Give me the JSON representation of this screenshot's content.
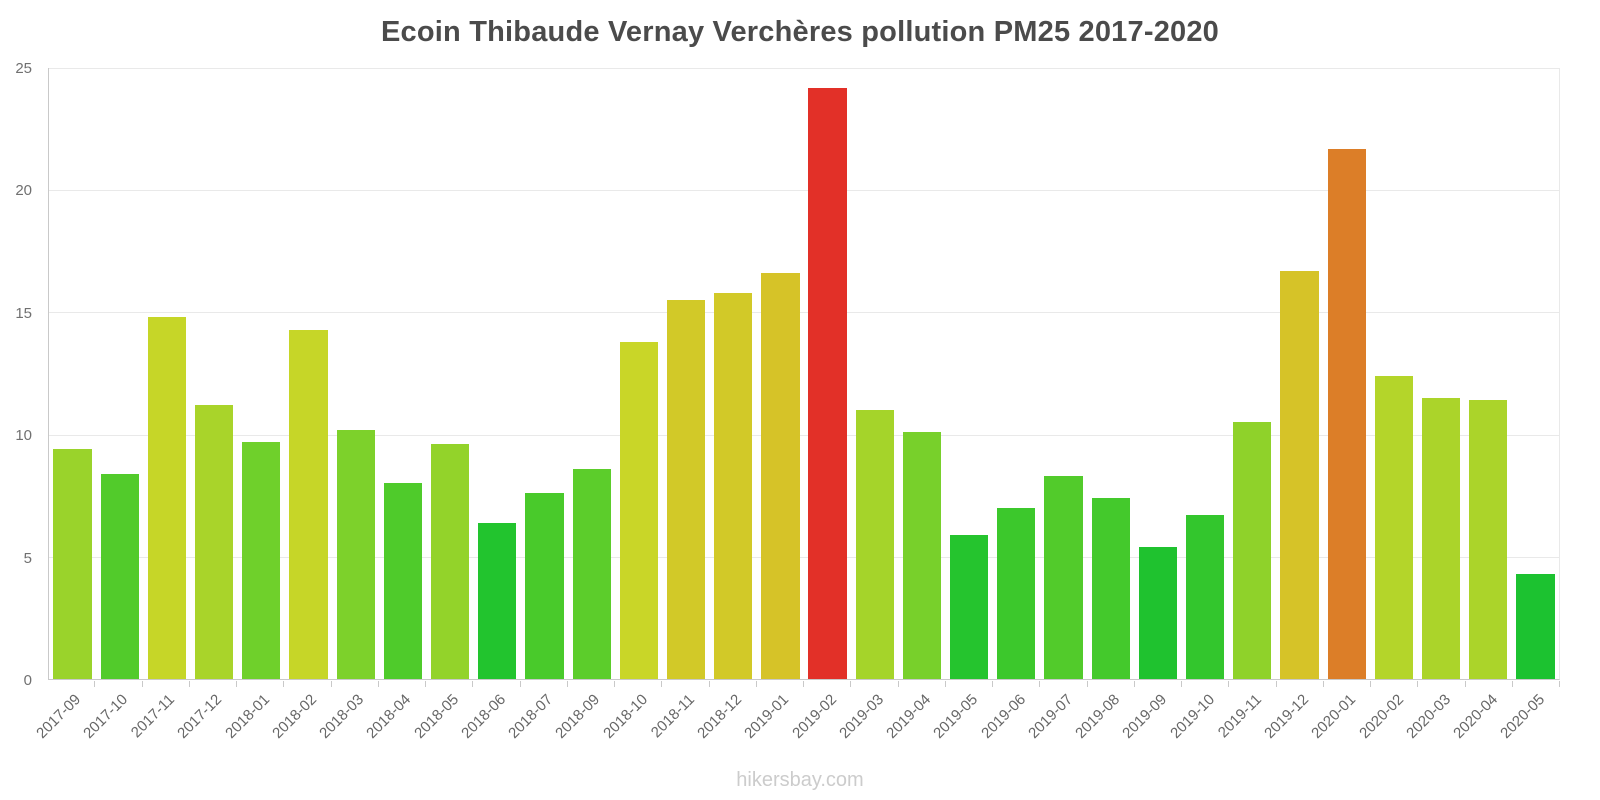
{
  "title": "Ecoin Thibaude Vernay Verchères pollution PM25 2017-2020",
  "footer": "hikersbay.com",
  "chart_data": {
    "type": "bar",
    "title": "Ecoin Thibaude Vernay Verchères pollution PM25 2017-2020",
    "xlabel": "",
    "ylabel": "",
    "ylim": [
      0,
      25
    ],
    "y_ticks": [
      0,
      5,
      10,
      15,
      20,
      25
    ],
    "grid": "horizontal",
    "x_tick_rotation": -45,
    "legend": "none",
    "categories": [
      "2017-09",
      "2017-10",
      "2017-11",
      "2017-12",
      "2018-01",
      "2018-02",
      "2018-03",
      "2018-04",
      "2018-05",
      "2018-06",
      "2018-07",
      "2018-09",
      "2018-10",
      "2018-11",
      "2018-12",
      "2019-01",
      "2019-02",
      "2019-03",
      "2019-04",
      "2019-05",
      "2019-06",
      "2019-07",
      "2019-08",
      "2019-09",
      "2019-10",
      "2019-11",
      "2019-12",
      "2020-01",
      "2020-02",
      "2020-03",
      "2020-04",
      "2020-05"
    ],
    "values": [
      9.4,
      8.4,
      14.8,
      11.2,
      9.7,
      14.3,
      10.2,
      8.0,
      9.6,
      6.4,
      7.6,
      8.6,
      13.8,
      15.5,
      15.8,
      16.6,
      24.2,
      11.0,
      10.1,
      5.9,
      7.0,
      8.3,
      7.4,
      5.4,
      6.7,
      10.5,
      16.7,
      21.7,
      12.4,
      11.5,
      11.4,
      4.3
    ],
    "bar_colors": [
      "#9ad32b",
      "#52cb2b",
      "#c6d628",
      "#a9d42a",
      "#6fd02b",
      "#c6d628",
      "#7dd12b",
      "#4fcb2b",
      "#93d32a",
      "#22c42e",
      "#49ca2b",
      "#5ccd2b",
      "#c9d628",
      "#d2c928",
      "#d2c928",
      "#d6c328",
      "#e23028",
      "#a5d42a",
      "#78d02b",
      "#25c42e",
      "#3cc82c",
      "#52cb2b",
      "#44c92c",
      "#1fc22f",
      "#33c62d",
      "#8fd22a",
      "#d6c328",
      "#dc7e28",
      "#b4d52a",
      "#abd42a",
      "#abd42a",
      "#1cc230"
    ],
    "colors_legend": {
      "low_green": "#1cc230",
      "green": "#52cb2b",
      "yellow_green": "#a9d42a",
      "yellow": "#c9d628",
      "mustard": "#d2c928",
      "orange": "#dc7e28",
      "red": "#e23028"
    }
  }
}
